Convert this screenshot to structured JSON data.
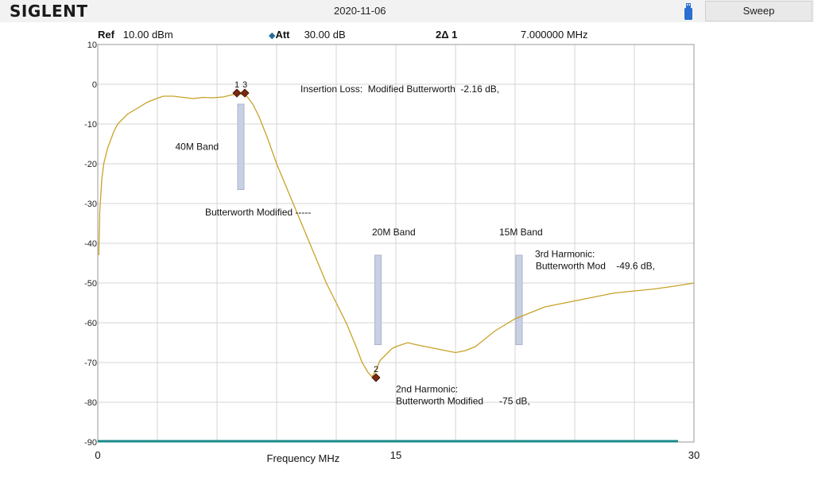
{
  "header": {
    "brand": "SIGLENT",
    "date": "2020-11-06",
    "sweep_label": "Sweep"
  },
  "info": {
    "ref_label": "Ref",
    "ref_value": "10.00 dBm",
    "att_label": "Att",
    "att_value": "30.00 dB",
    "marker_label": "2Δ 1",
    "marker_value": "7.000000 MHz"
  },
  "colors": {
    "trace": "#c9a227",
    "grid": "#d4d4d4",
    "band_box": "#c8d0e4",
    "marker": "#7a2a10",
    "baseline": "#1a8a8a"
  },
  "chart_data": {
    "type": "line",
    "xlabel": "Frequency MHz",
    "ylabel": "",
    "title": "",
    "xlim": [
      0,
      30
    ],
    "ylim": [
      -90,
      10
    ],
    "x_ticks": [
      {
        "value": 0,
        "label": "0"
      },
      {
        "value": 15,
        "label": "15"
      },
      {
        "value": 30,
        "label": "30"
      }
    ],
    "y_ticks": [
      10,
      0,
      -10,
      -20,
      -30,
      -40,
      -50,
      -60,
      -70,
      -80,
      -90
    ],
    "grid": true,
    "series": [
      {
        "name": "",
        "x": [
          0.05,
          0.1,
          0.2,
          0.3,
          0.5,
          0.8,
          1.0,
          1.5,
          2.0,
          2.5,
          3.0,
          3.3,
          3.8,
          4.3,
          4.8,
          5.3,
          5.8,
          6.3,
          6.8,
          7.2,
          7.5,
          7.8,
          8.1,
          8.5,
          9.0,
          9.5,
          10.0,
          10.5,
          11.0,
          11.5,
          12.0,
          12.5,
          13.0,
          13.3,
          13.6,
          13.8,
          14.0,
          14.2,
          14.5,
          14.8,
          15.0,
          15.3,
          15.6,
          16.0,
          16.5,
          17.0,
          17.5,
          18.0,
          18.5,
          19.0,
          19.5,
          20.0,
          20.5,
          21.0,
          21.5,
          22.0,
          22.5,
          23.0,
          24.0,
          25.0,
          26.0,
          27.0,
          28.0,
          29.0,
          30.0
        ],
        "y": [
          -43,
          -32,
          -24,
          -20,
          -16,
          -12,
          -10,
          -7.5,
          -6,
          -4.5,
          -3.5,
          -3,
          -3,
          -3.3,
          -3.6,
          -3.3,
          -3.4,
          -3.2,
          -2.6,
          -2.5,
          -3,
          -5,
          -8,
          -13,
          -20,
          -26,
          -32,
          -38,
          -44,
          -50,
          -55,
          -60,
          -66,
          -70,
          -72.5,
          -73.6,
          -72,
          -69.5,
          -68,
          -66.5,
          -66,
          -65.5,
          -65,
          -65.5,
          -66,
          -66.5,
          -67,
          -67.5,
          -67,
          -66,
          -64,
          -62,
          -60.5,
          -59,
          -58,
          -57,
          -56,
          -55.5,
          -54.5,
          -53.5,
          -52.5,
          -52,
          -51.5,
          -50.8,
          -50
        ]
      }
    ],
    "markers": [
      {
        "label": "1",
        "x": 7.0,
        "y": -2.2
      },
      {
        "label": "3",
        "x": 7.4,
        "y": -2.2
      },
      {
        "label": "2",
        "x": 14.0,
        "y": -73.8
      }
    ],
    "band_boxes": [
      {
        "x": 7.2,
        "y_top": -5,
        "y_bottom": -26.5
      },
      {
        "x": 14.1,
        "y_top": -43,
        "y_bottom": -65.5
      },
      {
        "x": 21.2,
        "y_top": -43,
        "y_bottom": -65.5
      }
    ],
    "annotations": [
      {
        "text": "Insertion Loss:  Modified Butterworth  -2.16 dB,",
        "x": 10.2,
        "y": -2
      },
      {
        "text": "40M Band",
        "x": 3.9,
        "y": -16.5
      },
      {
        "text": "Butterworth Modified -----",
        "x": 5.4,
        "y": -33
      },
      {
        "text": "20M Band",
        "x": 13.8,
        "y": -38
      },
      {
        "text": "15M Band",
        "x": 20.2,
        "y": -38
      },
      {
        "text": "3rd Harmonic:",
        "x": 22.0,
        "y": -43.5
      },
      {
        "text": " Butterworth Mod    -49.6 dB,",
        "x": 21.9,
        "y": -46.5
      },
      {
        "text": "2nd Harmonic:",
        "x": 15.0,
        "y": -77.5
      },
      {
        "text": "Butterworth Modified      -75 dB,",
        "x": 15.0,
        "y": -80.5
      }
    ]
  }
}
